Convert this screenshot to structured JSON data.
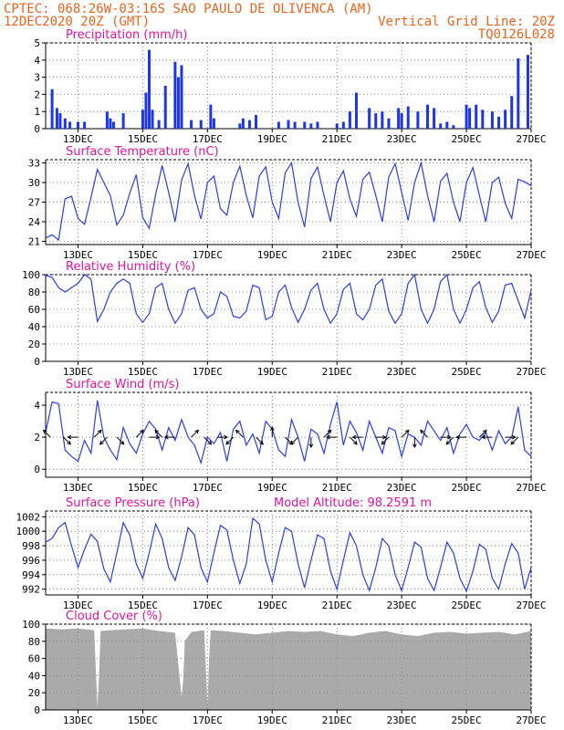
{
  "header": {
    "line1": "CPTEC:  068:26W-03:16S  SAO PAULO DE OLIVENCA (AM)",
    "line2_left": "12DEC2020 20Z (GMT)",
    "line2_right": "Vertical Grid Line: 20Z",
    "line3_right": "TQ0126L028"
  },
  "colors": {
    "header": "#e8641e",
    "title": "#e0149e",
    "series": "#2a3de8",
    "bar": "#1f35e8",
    "arrow": "#000000",
    "cloud": "#aaaaaa",
    "grid": "#888888"
  },
  "x_ticks": [
    "13DEC",
    "15DEC",
    "17DEC",
    "19DEC",
    "21DEC",
    "23DEC",
    "25DEC",
    "27DEC"
  ],
  "chart_data": [
    {
      "type": "bar",
      "title": "Precipitation (mm/h)",
      "x": [
        0.2,
        0.35,
        0.45,
        0.6,
        0.75,
        1.0,
        1.2,
        1.9,
        2.0,
        2.1,
        2.4,
        3.0,
        3.1,
        3.2,
        3.3,
        3.5,
        3.7,
        4.0,
        4.1,
        4.2,
        4.5,
        4.8,
        5.1,
        5.2,
        6.0,
        6.1,
        6.3,
        6.5,
        7.2,
        7.5,
        7.7,
        8.0,
        8.2,
        8.4,
        9.0,
        9.2,
        9.4,
        9.6,
        10.0,
        10.2,
        10.4,
        10.6,
        10.9,
        11.0,
        11.2,
        11.5,
        11.8,
        12.0,
        12.2,
        12.4,
        12.6,
        13.0,
        13.1,
        13.3,
        13.5,
        13.8,
        14.0,
        14.2,
        14.4,
        14.6,
        14.9
      ],
      "values": [
        2.3,
        1.2,
        0.9,
        0.6,
        0.4,
        0.4,
        0.4,
        1.0,
        0.6,
        0.4,
        0.9,
        1.1,
        2.1,
        4.6,
        1.1,
        0.5,
        2.5,
        3.9,
        3.0,
        3.7,
        0.5,
        0.5,
        1.4,
        0.6,
        0.3,
        0.6,
        0.5,
        0.8,
        0.4,
        0.5,
        0.4,
        0.4,
        0.3,
        0.4,
        0.3,
        0.4,
        1.0,
        2.1,
        1.2,
        0.9,
        1.0,
        0.6,
        1.2,
        0.9,
        1.3,
        1.0,
        1.4,
        1.2,
        0.3,
        0.4,
        0.2,
        1.4,
        1.2,
        1.4,
        1.1,
        1.0,
        0.7,
        1.1,
        1.9,
        4.1,
        4.3
      ],
      "ylim": [
        0,
        5
      ],
      "yticks": [
        "0",
        "1",
        "2",
        "3",
        "4",
        "5"
      ]
    },
    {
      "type": "line",
      "title": "Surface Temperature (nC)",
      "x": [
        0,
        0.2,
        0.4,
        0.6,
        0.8,
        1.0,
        1.2,
        1.4,
        1.6,
        1.8,
        2.0,
        2.2,
        2.4,
        2.6,
        2.8,
        3.0,
        3.2,
        3.4,
        3.6,
        3.8,
        4.0,
        4.2,
        4.4,
        4.6,
        4.8,
        5.0,
        5.2,
        5.4,
        5.6,
        5.8,
        6.0,
        6.2,
        6.4,
        6.6,
        6.8,
        7.0,
        7.2,
        7.4,
        7.6,
        7.8,
        8.0,
        8.2,
        8.4,
        8.6,
        8.8,
        9.0,
        9.2,
        9.4,
        9.6,
        9.8,
        10.0,
        10.2,
        10.4,
        10.6,
        10.8,
        11.0,
        11.2,
        11.4,
        11.6,
        11.8,
        12.0,
        12.2,
        12.4,
        12.6,
        12.8,
        13.0,
        13.2,
        13.4,
        13.6,
        13.8,
        14.0,
        14.2,
        14.4,
        14.6,
        14.8,
        15.0
      ],
      "values": [
        21.5,
        22.0,
        21.2,
        27.5,
        27.9,
        24.5,
        23.6,
        27.7,
        32.0,
        30.0,
        28.0,
        23.5,
        25.0,
        28.4,
        31.2,
        24.6,
        23.0,
        28.2,
        32.6,
        28.5,
        24.0,
        30.4,
        32.9,
        28.0,
        24.4,
        30.0,
        31.0,
        26.0,
        25.0,
        30.0,
        32.5,
        28.0,
        24.6,
        31.0,
        32.4,
        27.0,
        24.5,
        31.5,
        33.0,
        27.0,
        23.2,
        30.6,
        32.4,
        28.0,
        24.0,
        30.0,
        31.8,
        27.5,
        24.8,
        30.5,
        31.6,
        28.0,
        24.0,
        30.8,
        32.9,
        28.5,
        24.2,
        30.0,
        33.0,
        28.0,
        24.0,
        30.2,
        31.4,
        27.0,
        24.0,
        30.0,
        32.3,
        28.0,
        24.0,
        30.0,
        30.8,
        26.8,
        24.5,
        30.5,
        30.1,
        29.5
      ],
      "ylim": [
        20.5,
        33.5
      ],
      "yticks": [
        "21",
        "24",
        "27",
        "30",
        "33"
      ]
    },
    {
      "type": "line",
      "title": "Relative Humidity (%)",
      "x": [
        0,
        0.2,
        0.4,
        0.6,
        0.8,
        1.0,
        1.2,
        1.4,
        1.6,
        1.8,
        2.0,
        2.2,
        2.4,
        2.6,
        2.8,
        3.0,
        3.2,
        3.4,
        3.6,
        3.8,
        4.0,
        4.2,
        4.4,
        4.6,
        4.8,
        5.0,
        5.2,
        5.4,
        5.6,
        5.8,
        6.0,
        6.2,
        6.4,
        6.6,
        6.8,
        7.0,
        7.2,
        7.4,
        7.6,
        7.8,
        8.0,
        8.2,
        8.4,
        8.6,
        8.8,
        9.0,
        9.2,
        9.4,
        9.6,
        9.8,
        10.0,
        10.2,
        10.4,
        10.6,
        10.8,
        11.0,
        11.2,
        11.4,
        11.6,
        11.8,
        12.0,
        12.2,
        12.4,
        12.6,
        12.8,
        13.0,
        13.2,
        13.4,
        13.6,
        13.8,
        14.0,
        14.2,
        14.4,
        14.6,
        14.8,
        15.0
      ],
      "values": [
        99,
        97,
        85,
        80,
        85,
        90,
        100,
        95,
        46,
        60,
        80,
        90,
        95,
        90,
        55,
        45,
        55,
        85,
        90,
        60,
        44,
        55,
        82,
        85,
        60,
        50,
        55,
        80,
        75,
        52,
        50,
        58,
        88,
        85,
        48,
        52,
        80,
        88,
        62,
        45,
        60,
        82,
        90,
        60,
        44,
        55,
        83,
        90,
        55,
        48,
        60,
        88,
        95,
        58,
        44,
        55,
        90,
        100,
        60,
        44,
        60,
        92,
        100,
        60,
        44,
        60,
        85,
        92,
        62,
        45,
        58,
        88,
        90,
        70,
        50,
        82
      ],
      "ylim": [
        0,
        100
      ],
      "yticks": [
        "0",
        "20",
        "40",
        "60",
        "80",
        "100"
      ]
    },
    {
      "type": "line",
      "title": "Surface Wind (m/s)",
      "x": [
        0,
        0.2,
        0.4,
        0.6,
        0.8,
        1.0,
        1.2,
        1.4,
        1.6,
        1.8,
        2.0,
        2.2,
        2.4,
        2.6,
        2.8,
        3.0,
        3.2,
        3.4,
        3.6,
        3.8,
        4.0,
        4.2,
        4.4,
        4.6,
        4.8,
        5.0,
        5.2,
        5.4,
        5.6,
        5.8,
        6.0,
        6.2,
        6.4,
        6.6,
        6.8,
        7.0,
        7.2,
        7.4,
        7.6,
        7.8,
        8.0,
        8.2,
        8.4,
        8.6,
        8.8,
        9.0,
        9.2,
        9.4,
        9.6,
        9.8,
        10.0,
        10.2,
        10.4,
        10.6,
        10.8,
        11.0,
        11.2,
        11.4,
        11.6,
        11.8,
        12.0,
        12.2,
        12.4,
        12.6,
        12.8,
        13.0,
        13.2,
        13.4,
        13.6,
        13.8,
        14.0,
        14.2,
        14.4,
        14.6,
        14.8,
        15.0
      ],
      "values": [
        2.3,
        4.2,
        4.1,
        1.2,
        0.8,
        0.5,
        1.8,
        1.0,
        4.3,
        2.0,
        1.2,
        0.6,
        2.6,
        1.6,
        1.0,
        2.2,
        3.0,
        2.5,
        1.2,
        2.6,
        1.8,
        3.1,
        2.0,
        1.5,
        0.4,
        2.0,
        1.6,
        2.3,
        0.5,
        2.5,
        3.0,
        1.5,
        2.2,
        1.0,
        3.0,
        2.5,
        1.2,
        0.8,
        3.1,
        2.0,
        0.5,
        2.5,
        2.2,
        1.0,
        2.8,
        4.2,
        1.5,
        3.0,
        2.3,
        1.2,
        3.0,
        2.0,
        1.0,
        2.6,
        2.4,
        0.8,
        2.2,
        2.0,
        1.5,
        3.0,
        2.4,
        1.8,
        2.6,
        1.0,
        2.2,
        2.8,
        2.0,
        1.8,
        2.3,
        1.2,
        2.4,
        1.6,
        2.0,
        3.9,
        1.2,
        0.8
      ],
      "ylim": [
        -0.5,
        4.8
      ],
      "yticks": [
        "0",
        "2",
        "4"
      ]
    },
    {
      "type": "line",
      "title": "Surface Pressure (hPa)",
      "annotation": "Model Altitude: 98.2591 m",
      "x": [
        0,
        0.2,
        0.4,
        0.6,
        0.8,
        1.0,
        1.2,
        1.4,
        1.6,
        1.8,
        2.0,
        2.2,
        2.4,
        2.6,
        2.8,
        3.0,
        3.2,
        3.4,
        3.6,
        3.8,
        4.0,
        4.2,
        4.4,
        4.6,
        4.8,
        5.0,
        5.2,
        5.4,
        5.6,
        5.8,
        6.0,
        6.2,
        6.4,
        6.6,
        6.8,
        7.0,
        7.2,
        7.4,
        7.6,
        7.8,
        8.0,
        8.2,
        8.4,
        8.6,
        8.8,
        9.0,
        9.2,
        9.4,
        9.6,
        9.8,
        10.0,
        10.2,
        10.4,
        10.6,
        10.8,
        11.0,
        11.2,
        11.4,
        11.6,
        11.8,
        12.0,
        12.2,
        12.4,
        12.6,
        12.8,
        13.0,
        13.2,
        13.4,
        13.6,
        13.8,
        14.0,
        14.2,
        14.4,
        14.6,
        14.8,
        15.0
      ],
      "values": [
        998.5,
        999.0,
        1000.5,
        1001.2,
        998.0,
        995.0,
        997.5,
        999.6,
        998.6,
        994.8,
        993.0,
        997.0,
        1001.2,
        999.5,
        995.5,
        993.5,
        997.0,
        1001.0,
        999.0,
        995.0,
        993.2,
        996.5,
        1000.5,
        999.5,
        995.0,
        993.0,
        997.0,
        1000.8,
        1000.2,
        996.0,
        992.8,
        995.5,
        1001.8,
        1001.0,
        996.0,
        993.0,
        997.0,
        1000.5,
        1000.0,
        995.5,
        992.2,
        996.0,
        999.5,
        999.0,
        994.5,
        992.0,
        996.0,
        999.8,
        998.0,
        994.0,
        991.8,
        995.0,
        999.0,
        998.0,
        994.0,
        991.8,
        995.0,
        998.5,
        997.8,
        993.5,
        991.8,
        995.0,
        998.5,
        997.0,
        993.5,
        991.7,
        994.5,
        998.2,
        997.5,
        993.5,
        992.0,
        995.5,
        998.3,
        997.0,
        992.0,
        995.0
      ],
      "ylim": [
        991.2,
        1002.8
      ],
      "yticks": [
        "992",
        "994",
        "996",
        "998",
        "1000",
        "1002"
      ]
    },
    {
      "type": "area",
      "title": "Cloud Cover (%)",
      "x": [
        0,
        0.5,
        1.0,
        1.5,
        1.6,
        1.65,
        1.7,
        2.0,
        2.5,
        3.0,
        3.5,
        4.0,
        4.2,
        4.25,
        4.3,
        4.5,
        4.9,
        5.0,
        5.05,
        5.1,
        5.5,
        6.0,
        6.5,
        7.0,
        7.5,
        8.0,
        8.5,
        9.0,
        9.5,
        10.0,
        10.5,
        11.0,
        11.5,
        12.0,
        12.5,
        13.0,
        13.5,
        14.0,
        14.5,
        15.0
      ],
      "values": [
        95,
        94,
        95,
        93,
        3,
        40,
        92,
        93,
        94,
        95,
        92,
        90,
        15,
        35,
        80,
        91,
        93,
        5,
        60,
        93,
        92,
        90,
        88,
        90,
        92,
        91,
        92,
        88,
        86,
        90,
        92,
        88,
        86,
        90,
        91,
        89,
        90,
        91,
        88,
        92
      ],
      "ylim": [
        0,
        100
      ],
      "yticks": [
        "0",
        "20",
        "40",
        "60",
        "80",
        "100"
      ]
    }
  ],
  "wind_arrows": [
    {
      "x": 0.15,
      "dir": "up-left"
    },
    {
      "x": 0.55,
      "dir": "down-right"
    },
    {
      "x": 1.0,
      "dir": "left"
    },
    {
      "x": 1.5,
      "dir": "up-right"
    },
    {
      "x": 1.9,
      "dir": "down-left"
    },
    {
      "x": 2.2,
      "dir": "down-right"
    },
    {
      "x": 2.8,
      "dir": "up-right"
    },
    {
      "x": 3.2,
      "dir": "right"
    },
    {
      "x": 3.6,
      "dir": "up-left"
    },
    {
      "x": 4.0,
      "dir": "left"
    },
    {
      "x": 4.5,
      "dir": "up-right"
    },
    {
      "x": 4.9,
      "dir": "down-right"
    },
    {
      "x": 5.3,
      "dir": "right"
    },
    {
      "x": 5.8,
      "dir": "down-left"
    },
    {
      "x": 6.1,
      "dir": "up-left"
    },
    {
      "x": 6.5,
      "dir": "down-right"
    },
    {
      "x": 7.0,
      "dir": "up"
    },
    {
      "x": 7.4,
      "dir": "down-right"
    },
    {
      "x": 7.8,
      "dir": "down-left"
    },
    {
      "x": 8.2,
      "dir": "down"
    },
    {
      "x": 8.6,
      "dir": "up-right"
    },
    {
      "x": 9.0,
      "dir": "left"
    },
    {
      "x": 9.4,
      "dir": "down-right"
    },
    {
      "x": 9.8,
      "dir": "left"
    },
    {
      "x": 10.2,
      "dir": "right"
    },
    {
      "x": 10.6,
      "dir": "down-left"
    },
    {
      "x": 11.0,
      "dir": "up-right"
    },
    {
      "x": 11.4,
      "dir": "down"
    },
    {
      "x": 11.8,
      "dir": "up-left"
    },
    {
      "x": 12.2,
      "dir": "right"
    },
    {
      "x": 12.6,
      "dir": "down-left"
    },
    {
      "x": 13.0,
      "dir": "left"
    },
    {
      "x": 13.4,
      "dir": "up-right"
    },
    {
      "x": 13.8,
      "dir": "left"
    },
    {
      "x": 14.2,
      "dir": "right"
    },
    {
      "x": 14.6,
      "dir": "down-left"
    }
  ]
}
